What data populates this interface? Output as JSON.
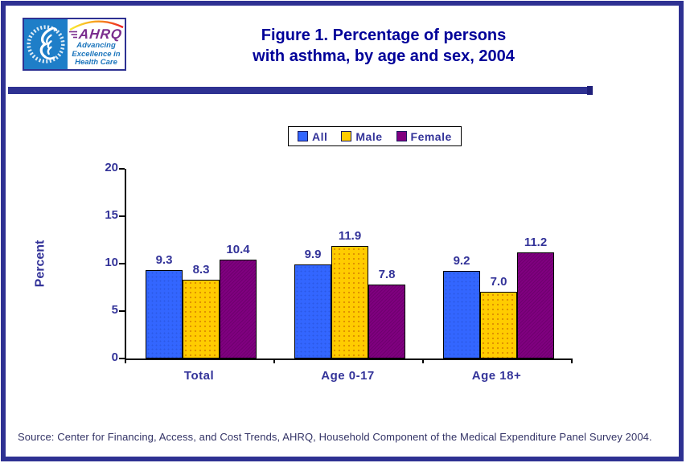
{
  "header": {
    "title_line1": "Figure 1. Percentage of persons",
    "title_line2": "with asthma, by age and sex, 2004"
  },
  "logo": {
    "hhs_seal": "hhs-eagle-seal",
    "ahrq": "AHRQ",
    "tagline": [
      "Advancing",
      "Excellence in",
      "Health Care"
    ]
  },
  "chart_data": {
    "type": "bar",
    "title": "Figure 1. Percentage of persons with asthma, by age and sex, 2004",
    "categories": [
      "Total",
      "Age 0-17",
      "Age 18+"
    ],
    "series": [
      {
        "name": "All",
        "color": "#3366FF",
        "values": [
          9.3,
          9.9,
          9.2
        ]
      },
      {
        "name": "Male",
        "color": "#FFCC00",
        "values": [
          8.3,
          11.9,
          7.0
        ]
      },
      {
        "name": "Female",
        "color": "#800080",
        "values": [
          10.4,
          7.8,
          11.2
        ]
      }
    ],
    "ylabel": "Percent",
    "ylim": [
      0,
      20
    ],
    "yticks": [
      0,
      5,
      10,
      15,
      20
    ],
    "grid": false,
    "legend_position": "top-center",
    "value_label_decimals": 1
  },
  "source": "Source: Center for Financing, Access, and Cost Trends, AHRQ, Household Component of the Medical Expenditure Panel Survey 2004.",
  "colors": {
    "page_border": "#2E3192",
    "header_rule": "#2E3192",
    "title_text": "#000099",
    "chart_text": "#333399",
    "axis": "#000000",
    "bar_all": "#3366FF",
    "bar_male": "#FFCC00",
    "bar_female": "#800080",
    "hhs_blue": "#1E7EC8",
    "ahrq_purple": "#7B2E8E",
    "tagline_blue": "#1B75BC",
    "source_text": "#333366"
  }
}
